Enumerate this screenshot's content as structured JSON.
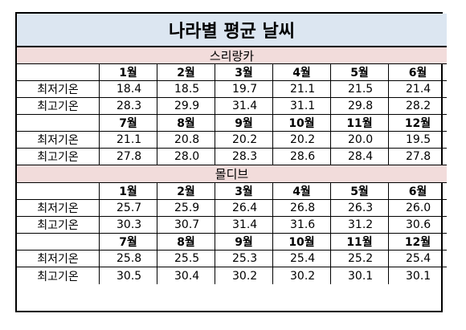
{
  "title": "나라별 평균 날씨",
  "row_labels": {
    "min": "최저기온",
    "max": "최고기온"
  },
  "sections": [
    {
      "name": "스리랑카",
      "halves": [
        {
          "months": [
            "1월",
            "2월",
            "3월",
            "4월",
            "5월",
            "6월"
          ],
          "min": [
            "18.4",
            "18.5",
            "19.7",
            "21.1",
            "21.5",
            "21.4"
          ],
          "max": [
            "28.3",
            "29.9",
            "31.4",
            "31.1",
            "29.8",
            "28.2"
          ]
        },
        {
          "months": [
            "7월",
            "8월",
            "9월",
            "10월",
            "11월",
            "12월"
          ],
          "min": [
            "21.1",
            "20.8",
            "20.2",
            "20.2",
            "20.0",
            "19.5"
          ],
          "max": [
            "27.8",
            "28.0",
            "28.3",
            "28.6",
            "28.4",
            "27.8"
          ]
        }
      ]
    },
    {
      "name": "몰디브",
      "halves": [
        {
          "months": [
            "1월",
            "2월",
            "3월",
            "4월",
            "5월",
            "6월"
          ],
          "min": [
            "25.7",
            "25.9",
            "26.4",
            "26.8",
            "26.3",
            "26.0"
          ],
          "max": [
            "30.3",
            "30.7",
            "31.4",
            "31.6",
            "31.2",
            "30.6"
          ]
        },
        {
          "months": [
            "7월",
            "8월",
            "9월",
            "10월",
            "11월",
            "12월"
          ],
          "min": [
            "25.8",
            "25.5",
            "25.3",
            "25.4",
            "25.2",
            "25.4"
          ],
          "max": [
            "30.5",
            "30.4",
            "30.2",
            "30.2",
            "30.1",
            "30.1"
          ]
        }
      ]
    }
  ]
}
